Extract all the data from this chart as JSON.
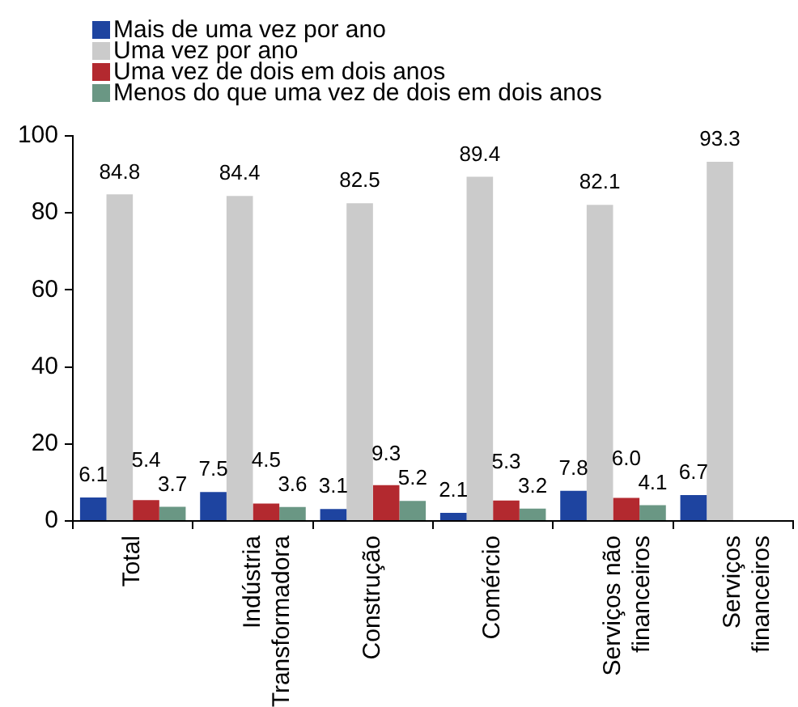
{
  "chart_data": {
    "type": "bar",
    "categories": [
      "Total",
      "Indústria Transformadora",
      "Construção",
      "Comércio",
      "Serviços não financeiros",
      "Serviços financeiros"
    ],
    "series": [
      {
        "name": "Mais de uma vez por ano",
        "color": "#1e44a0",
        "values": [
          6.1,
          7.5,
          3.1,
          2.1,
          7.8,
          6.7
        ],
        "value_labels": [
          "6.1",
          "7.5",
          "3.1",
          "2.1",
          "7.8",
          "6.7"
        ]
      },
      {
        "name": "Uma vez por ano",
        "color": "#cbcbcb",
        "values": [
          84.8,
          84.4,
          82.5,
          89.4,
          82.1,
          93.3
        ],
        "value_labels": [
          "84.8",
          "84.4",
          "82.5",
          "89.4",
          "82.1",
          "93.3"
        ]
      },
      {
        "name": "Uma vez de dois em dois anos",
        "color": "#b3292f",
        "values": [
          5.4,
          4.5,
          9.3,
          5.3,
          6.0,
          null
        ],
        "value_labels": [
          "5.4",
          "4.5",
          "9.3",
          "5.3",
          "6.0",
          null
        ]
      },
      {
        "name": "Menos do que uma vez de dois em dois anos",
        "color": "#6a9784",
        "values": [
          3.7,
          3.6,
          5.2,
          3.2,
          4.1,
          null
        ],
        "value_labels": [
          "3.7",
          "3.6",
          "5.2",
          "3.2",
          "4.1",
          null
        ]
      }
    ],
    "ylim": [
      0,
      100
    ],
    "yticks": [
      0,
      20,
      40,
      60,
      80,
      100
    ],
    "grid": false,
    "legend": "top left"
  }
}
